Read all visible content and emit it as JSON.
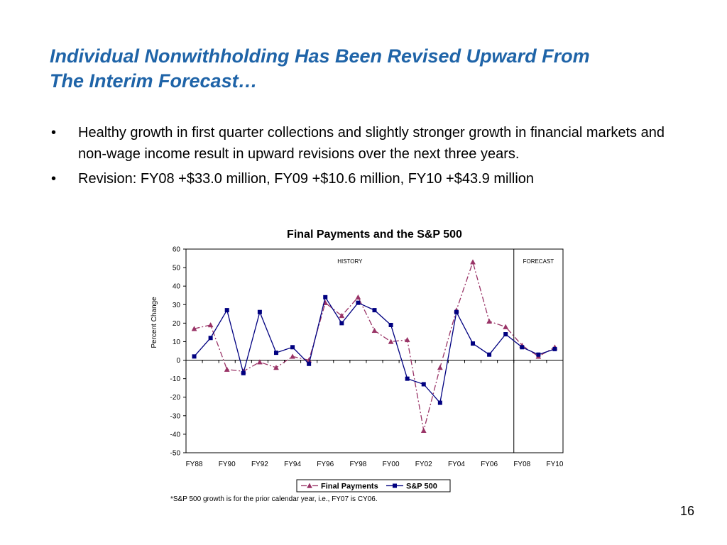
{
  "slide": {
    "title_line1": "Individual Nonwithholding Has Been Revised Upward From",
    "title_line2": "The Interim Forecast…",
    "bullet_marker": "•",
    "bullets": [
      "Healthy growth in first quarter collections and slightly stronger growth in financial markets and non-wage income result in upward revisions over the next three years.",
      "Revision: FY08 +$33.0 million, FY09 +$10.6 million, FY10 +$43.9 million"
    ],
    "footnote": "*S&P 500 growth is for the prior calendar year, i.e., FY07 is CY06.",
    "page_number": "16",
    "title_color": "#1f64a8"
  },
  "chart_data": {
    "type": "line",
    "title": "Final Payments and the S&P 500",
    "ylabel": "Percent Change",
    "xlabel": "",
    "ylim": [
      -50,
      60
    ],
    "yticks": [
      60,
      50,
      40,
      30,
      20,
      10,
      0,
      -10,
      -20,
      -30,
      -40,
      -50
    ],
    "x": [
      "FY88",
      "FY89",
      "FY90",
      "FY91",
      "FY92",
      "FY93",
      "FY94",
      "FY95",
      "FY96",
      "FY97",
      "FY98",
      "FY99",
      "FY00",
      "FY01",
      "FY02",
      "FY03",
      "FY04",
      "FY05",
      "FY06",
      "FY07",
      "FY08",
      "FY09",
      "FY10"
    ],
    "xtick_labels": [
      "FY88",
      "FY90",
      "FY92",
      "FY94",
      "FY96",
      "FY98",
      "FY00",
      "FY02",
      "FY04",
      "FY06",
      "FY08",
      "FY10"
    ],
    "regions": [
      {
        "label": "HISTORY"
      },
      {
        "label": "FORECAST"
      }
    ],
    "forecast_start": "FY08",
    "legend_position": "bottom",
    "grid": false,
    "series": [
      {
        "name": "Final Payments",
        "color": "#993366",
        "marker": "triangle",
        "dash": "dashdot",
        "values": [
          17,
          19,
          -5,
          -6,
          -1,
          -4,
          2,
          0,
          31,
          24,
          34,
          16,
          10,
          11,
          -38,
          -4,
          27,
          53,
          21,
          18,
          8,
          2,
          7
        ]
      },
      {
        "name": "S&P 500",
        "color": "#000080",
        "marker": "square",
        "dash": "solid",
        "values": [
          2,
          12,
          27,
          -7,
          26,
          4,
          7,
          -2,
          34,
          20,
          31,
          27,
          19,
          -10,
          -13,
          -23,
          26,
          9,
          3,
          14,
          7,
          3,
          6
        ]
      }
    ]
  }
}
